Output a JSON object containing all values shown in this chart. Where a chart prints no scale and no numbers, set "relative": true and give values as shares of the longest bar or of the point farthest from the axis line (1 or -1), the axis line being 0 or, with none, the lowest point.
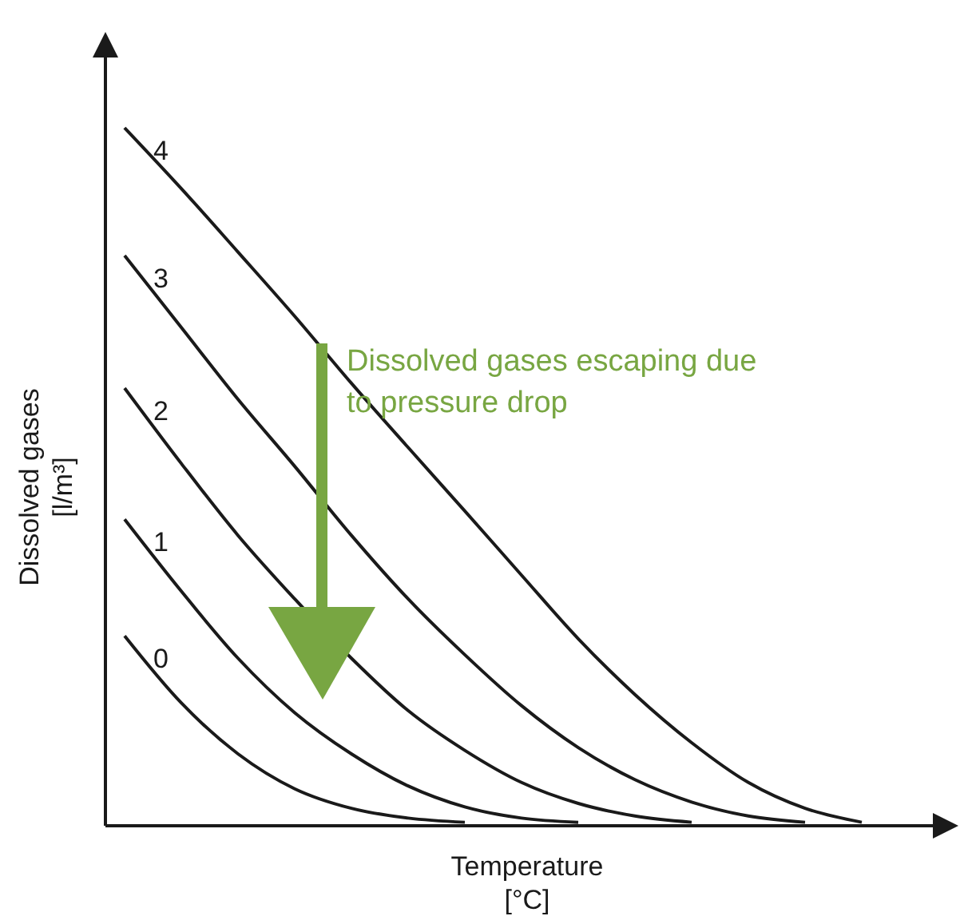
{
  "chart_data": {
    "type": "line",
    "relative": true,
    "xlabel": "Temperature\n[°C]",
    "ylabel": "Dissolved gases\n[l/m³]",
    "categories": [
      null,
      null,
      null,
      null,
      null,
      null,
      null,
      null,
      null,
      null,
      null,
      null,
      null,
      null
    ],
    "series": [
      {
        "name": "4",
        "color": "#1a1a1a",
        "values": [
          1,
          0.913,
          0.822,
          0.73,
          0.634,
          0.542,
          0.451,
          0.359,
          0.268,
          0.188,
          0.119,
          0.062,
          0.025,
          0.005
        ]
      },
      {
        "name": "3",
        "color": "#1a1a1a",
        "values": [
          0.817,
          0.714,
          0.611,
          0.515,
          0.416,
          0.325,
          0.245,
          0.172,
          0.112,
          0.066,
          0.034,
          0.014,
          0.005,
          null
        ]
      },
      {
        "name": "2",
        "color": "#1a1a1a",
        "values": [
          0.627,
          0.519,
          0.416,
          0.325,
          0.24,
          0.165,
          0.108,
          0.062,
          0.032,
          0.014,
          0.005,
          null,
          null,
          null
        ]
      },
      {
        "name": "1",
        "color": "#1a1a1a",
        "values": [
          0.439,
          0.336,
          0.24,
          0.162,
          0.103,
          0.057,
          0.027,
          0.011,
          0.005,
          null,
          null,
          null,
          null,
          null
        ]
      },
      {
        "name": "0",
        "color": "#1a1a1a",
        "values": [
          0.272,
          0.176,
          0.103,
          0.053,
          0.025,
          0.011,
          0.005,
          null,
          null,
          null,
          null,
          null,
          null,
          null
        ]
      }
    ],
    "annotations": [
      "Dissolved gases escaping due\nto pressure drop"
    ],
    "legend": false,
    "grid": false,
    "marker": "none",
    "line_style": "solid"
  }
}
